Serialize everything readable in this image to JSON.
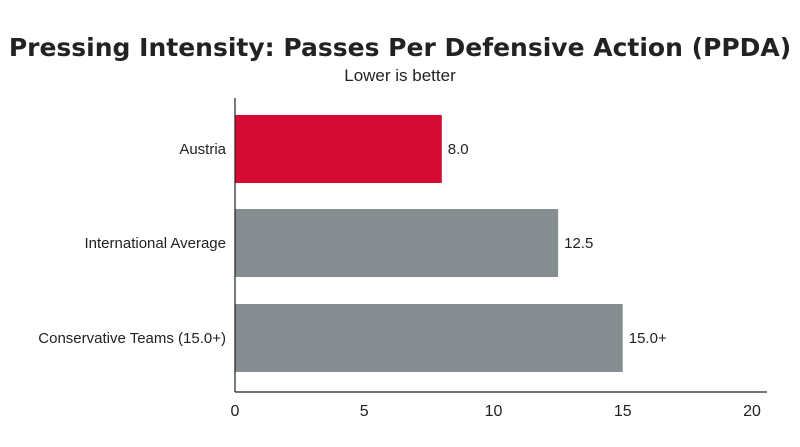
{
  "chart_data": {
    "type": "bar",
    "orientation": "horizontal",
    "title": "Pressing Intensity: Passes Per Defensive Action (PPDA)",
    "subtitle": "Lower is better",
    "xlabel": "",
    "ylabel": "",
    "xlim": [
      0,
      20
    ],
    "x_ticks": [
      0,
      5,
      10,
      15,
      20
    ],
    "grid": false,
    "categories": [
      "Austria",
      "International Average",
      "Conservative Teams (15.0+)"
    ],
    "values": [
      8.0,
      12.5,
      15.0
    ],
    "value_labels": [
      "8.0",
      "12.5",
      "15.0+"
    ],
    "bar_colors": [
      "#d50b35",
      "#868e92",
      "#868e92"
    ]
  }
}
